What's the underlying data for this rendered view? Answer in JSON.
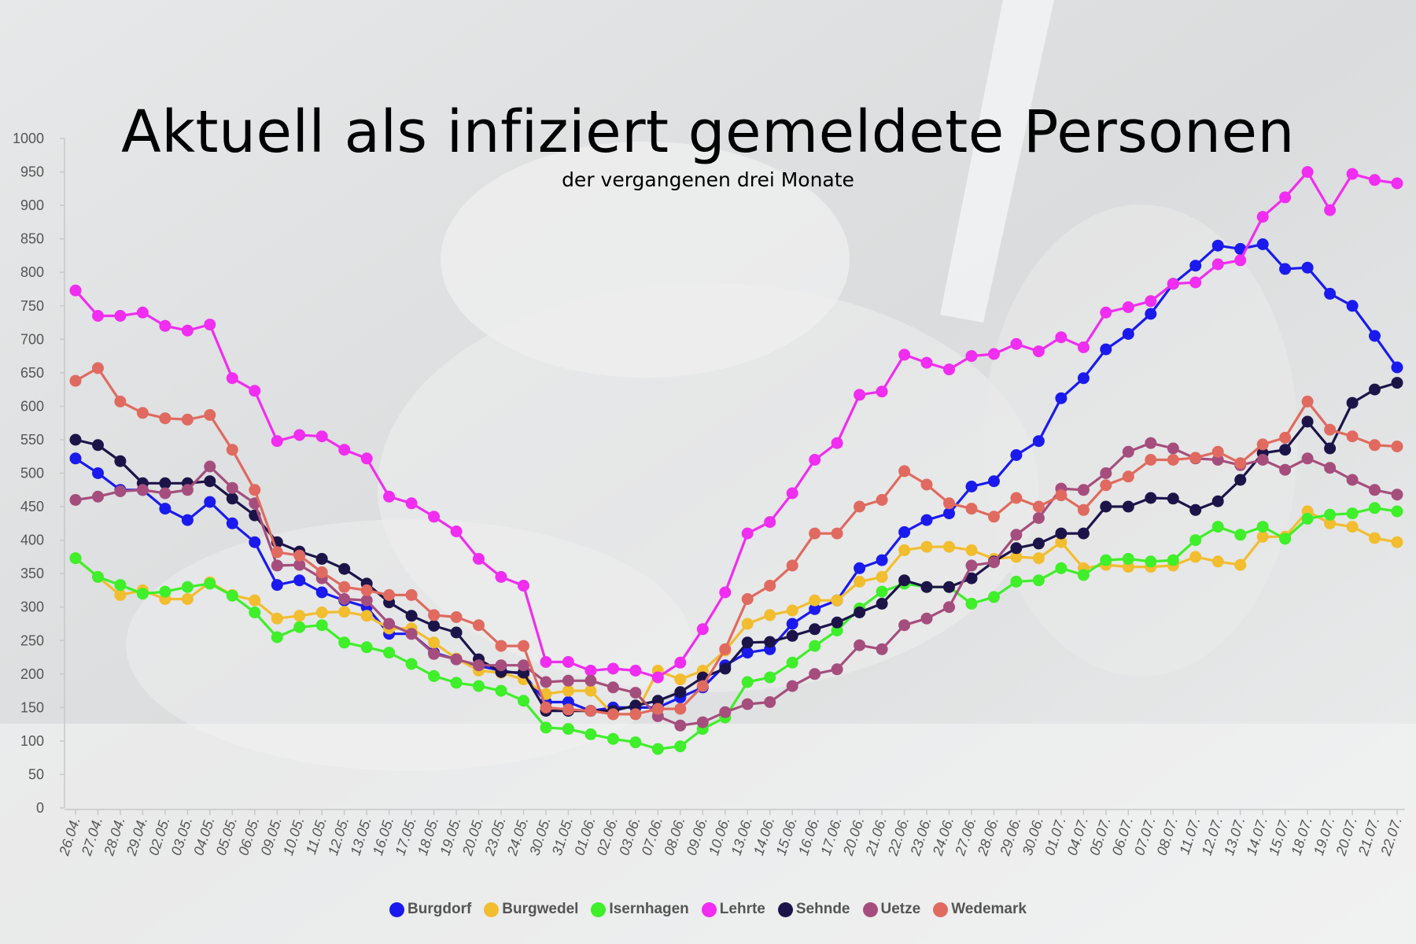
{
  "chart_data": {
    "type": "line",
    "title": "Aktuell als infiziert gemeldete Personen",
    "subtitle": "der vergangenen drei Monate",
    "ylim": [
      0,
      1000
    ],
    "yticks": [
      0,
      50,
      100,
      150,
      200,
      250,
      300,
      350,
      400,
      450,
      500,
      550,
      600,
      650,
      700,
      750,
      800,
      850,
      900,
      950,
      1000
    ],
    "grid": false,
    "legend_position": "bottom",
    "categories": [
      "26.04.",
      "27.04.",
      "28.04.",
      "29.04.",
      "02.05.",
      "03.05.",
      "04.05.",
      "05.05.",
      "06.05.",
      "09.05.",
      "10.05.",
      "11.05.",
      "12.05.",
      "13.05.",
      "16.05.",
      "17.05.",
      "18.05.",
      "19.05.",
      "20.05.",
      "23.05.",
      "24.05.",
      "30.05.",
      "31.05.",
      "01.06.",
      "02.06.",
      "03.06.",
      "07.06.",
      "08.06.",
      "09.06.",
      "10.06.",
      "13.06.",
      "14.06.",
      "15.06.",
      "16.06.",
      "17.06.",
      "20.06.",
      "21.06.",
      "22.06.",
      "23.06.",
      "24.06.",
      "27.06.",
      "28.06.",
      "29.06.",
      "30.06.",
      "01.07.",
      "04.07.",
      "05.07.",
      "06.07.",
      "07.07.",
      "08.07.",
      "11.07.",
      "12.07.",
      "13.07.",
      "14.07.",
      "15.07.",
      "18.07.",
      "19.07.",
      "20.07.",
      "21.07.",
      "22.07."
    ],
    "series": [
      {
        "name": "Burgdorf",
        "color": "#1a1aef",
        "values": [
          522,
          500,
          475,
          475,
          447,
          430,
          457,
          425,
          397,
          333,
          340,
          322,
          310,
          300,
          260,
          260,
          232,
          222,
          212,
          205,
          200,
          158,
          158,
          145,
          150,
          150,
          150,
          165,
          180,
          213,
          232,
          237,
          275,
          297,
          310,
          358,
          370,
          412,
          430,
          440,
          480,
          488,
          527,
          548,
          612,
          642,
          685,
          708,
          738,
          783,
          810,
          840,
          835,
          842,
          805,
          807,
          768,
          750,
          705,
          658
        ]
      },
      {
        "name": "Burgwedel",
        "color": "#f2bd2e",
        "values": [
          373,
          345,
          318,
          325,
          312,
          312,
          337,
          318,
          310,
          283,
          287,
          292,
          293,
          287,
          268,
          268,
          247,
          223,
          205,
          202,
          192,
          170,
          175,
          175,
          140,
          140,
          205,
          192,
          205,
          235,
          275,
          288,
          295,
          310,
          310,
          338,
          345,
          385,
          390,
          390,
          385,
          372,
          375,
          373,
          397,
          358,
          363,
          360,
          360,
          362,
          375,
          368,
          363,
          405,
          405,
          443,
          425,
          420,
          403,
          397
        ]
      },
      {
        "name": "Isernhagen",
        "color": "#3eef2a",
        "values": [
          373,
          345,
          333,
          320,
          323,
          330,
          335,
          317,
          292,
          255,
          270,
          273,
          247,
          240,
          232,
          215,
          197,
          187,
          182,
          175,
          160,
          120,
          118,
          110,
          103,
          98,
          88,
          92,
          118,
          135,
          188,
          195,
          217,
          242,
          265,
          298,
          323,
          335,
          330,
          330,
          305,
          315,
          338,
          340,
          358,
          348,
          370,
          372,
          368,
          370,
          400,
          420,
          408,
          420,
          402,
          432,
          438,
          440,
          448,
          443
        ]
      },
      {
        "name": "Lehrte",
        "color": "#f02df0",
        "values": [
          773,
          735,
          735,
          740,
          720,
          713,
          722,
          642,
          623,
          548,
          557,
          555,
          535,
          522,
          465,
          455,
          435,
          413,
          372,
          345,
          332,
          218,
          218,
          205,
          208,
          205,
          195,
          217,
          267,
          322,
          410,
          427,
          470,
          520,
          545,
          617,
          622,
          677,
          665,
          655,
          675,
          678,
          693,
          682,
          703,
          688,
          740,
          748,
          757,
          783,
          785,
          812,
          818,
          883,
          912,
          950,
          893,
          947,
          938,
          933
        ]
      },
      {
        "name": "Sehnde",
        "color": "#1c1449",
        "values": [
          550,
          542,
          518,
          485,
          485,
          485,
          488,
          462,
          437,
          397,
          383,
          372,
          357,
          335,
          307,
          287,
          272,
          262,
          222,
          203,
          202,
          145,
          145,
          145,
          145,
          153,
          160,
          173,
          195,
          208,
          247,
          248,
          257,
          267,
          277,
          292,
          305,
          340,
          330,
          330,
          343,
          368,
          388,
          395,
          410,
          410,
          450,
          450,
          463,
          462,
          445,
          458,
          490,
          530,
          535,
          577,
          537,
          605,
          625,
          635
        ]
      },
      {
        "name": "Uetze",
        "color": "#a54e7d",
        "values": [
          460,
          465,
          473,
          475,
          470,
          475,
          510,
          478,
          455,
          362,
          363,
          343,
          312,
          310,
          275,
          260,
          230,
          222,
          213,
          213,
          213,
          188,
          190,
          190,
          180,
          172,
          137,
          123,
          128,
          143,
          155,
          158,
          182,
          200,
          207,
          243,
          237,
          273,
          283,
          300,
          362,
          367,
          408,
          433,
          477,
          475,
          500,
          532,
          545,
          537,
          522,
          520,
          512,
          520,
          505,
          522,
          508,
          490,
          475,
          468
        ]
      },
      {
        "name": "Wedemark",
        "color": "#e06a5f",
        "values": [
          638,
          657,
          607,
          590,
          582,
          580,
          587,
          535,
          475,
          382,
          377,
          352,
          330,
          325,
          318,
          318,
          288,
          285,
          273,
          242,
          242,
          150,
          147,
          145,
          140,
          140,
          148,
          148,
          182,
          237,
          312,
          332,
          362,
          410,
          410,
          450,
          460,
          503,
          483,
          455,
          447,
          435,
          463,
          450,
          467,
          445,
          482,
          495,
          520,
          520,
          523,
          532,
          515,
          543,
          553,
          607,
          565,
          555,
          542,
          540
        ]
      }
    ]
  }
}
